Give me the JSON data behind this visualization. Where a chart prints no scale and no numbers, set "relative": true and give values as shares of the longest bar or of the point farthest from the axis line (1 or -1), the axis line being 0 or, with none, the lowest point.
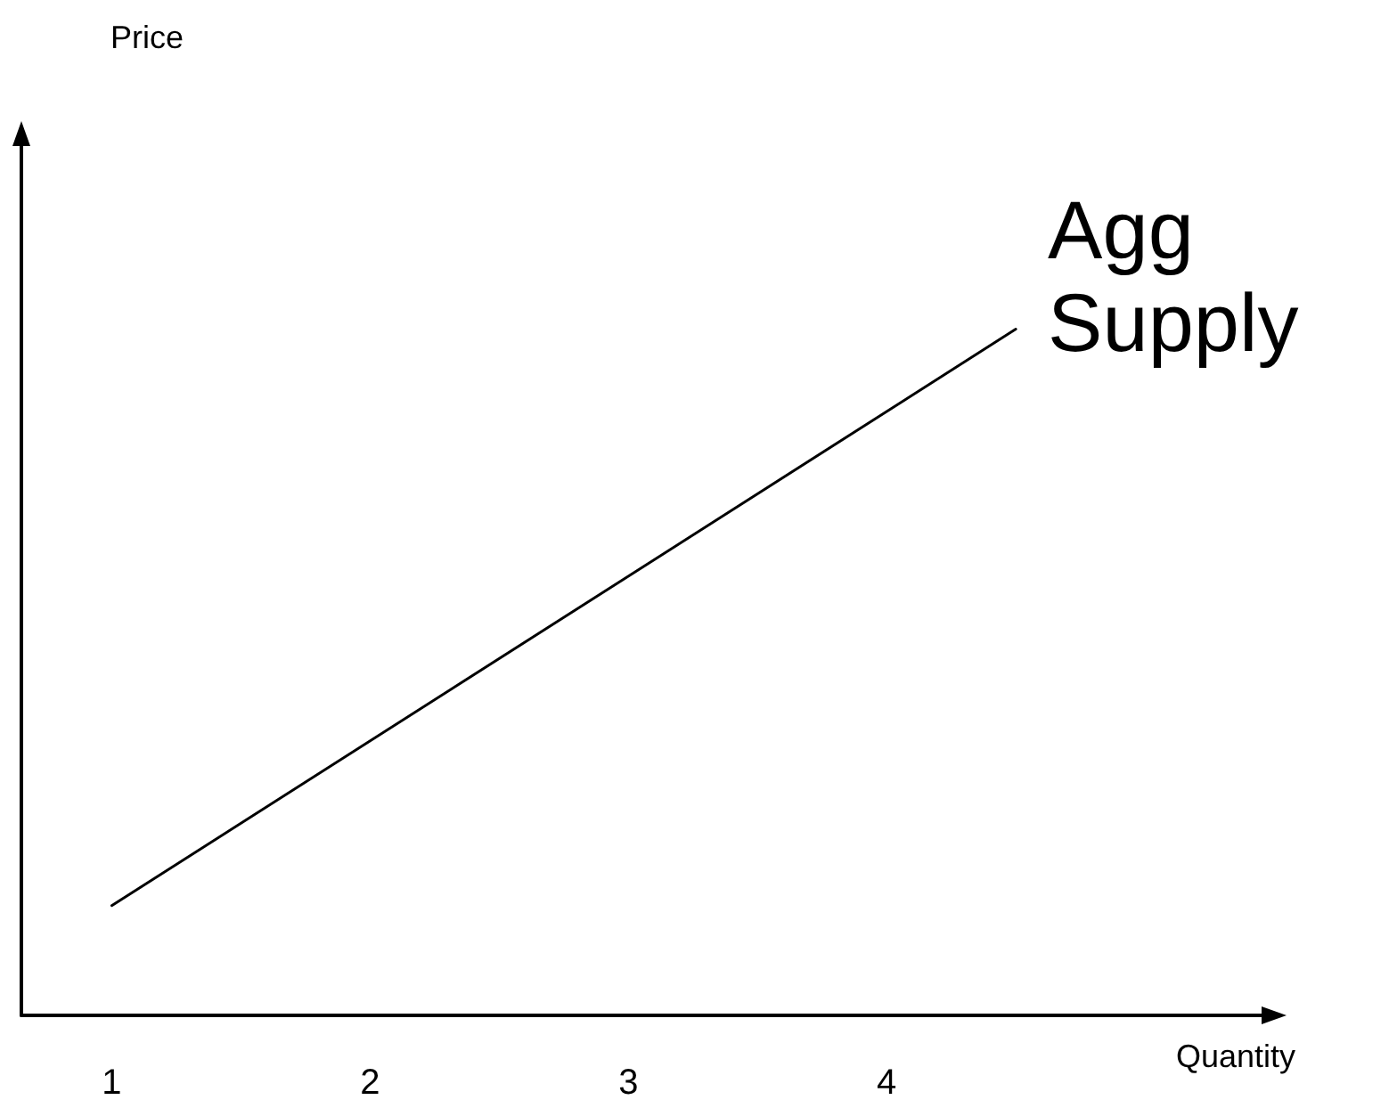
{
  "chart_data": {
    "type": "line",
    "xlabel": "Quantity",
    "annotations": [
      "Price"
    ],
    "relative": true,
    "xlim": [
      0.65,
      5.5
    ],
    "xticks": [
      1,
      2,
      3,
      4
    ],
    "marker": "none",
    "line_style": "solid",
    "grid": false,
    "series": [
      {
        "name": "Agg Supply",
        "color": "#000000",
        "x": [
          1,
          4.5
        ],
        "values": [
          0.16,
          1
        ]
      }
    ]
  }
}
